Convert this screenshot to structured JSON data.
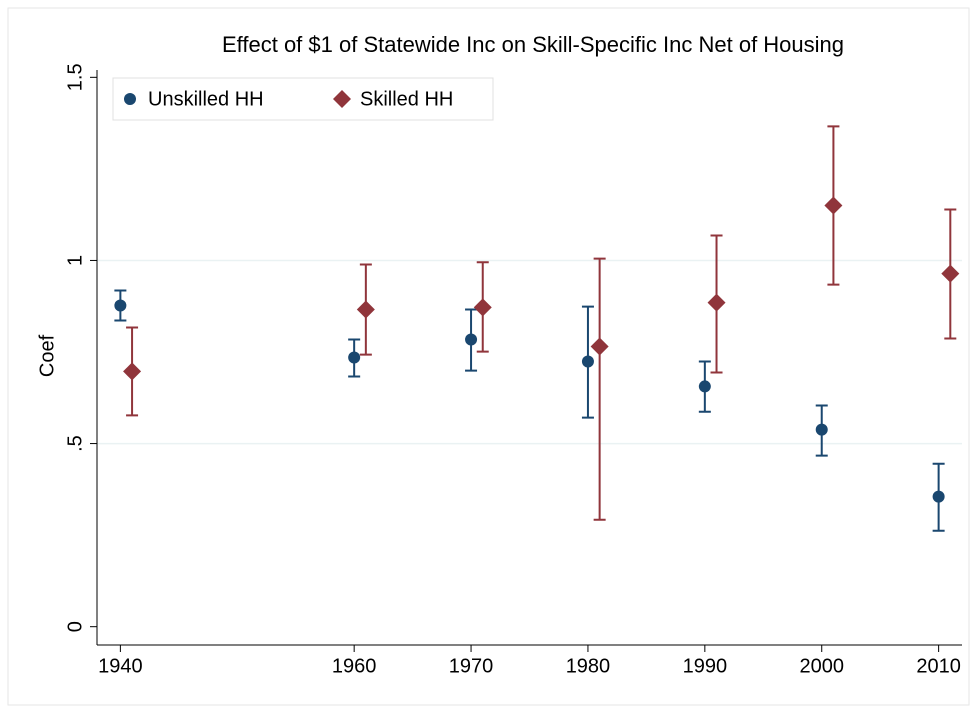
{
  "chart_data": {
    "type": "scatter-errorbar",
    "title": "Effect of $1 of Statewide Inc on Skill-Specific Inc Net of Housing",
    "y_label": "Coef",
    "xlim": [
      1938,
      2012
    ],
    "xticks": [
      1940,
      1960,
      1970,
      1980,
      1990,
      2000,
      2010
    ],
    "ylim": [
      -0.05,
      1.52
    ],
    "yticks": [
      0,
      {
        "value": 0.5,
        "label": ".5"
      },
      1,
      1.5
    ],
    "grid": true,
    "legend": "top-left",
    "series": [
      {
        "name": "Unskilled HH",
        "color": "#1a476f",
        "marker": "circle",
        "x": [
          1940,
          1960,
          1970,
          1980,
          1990,
          2000,
          2010
        ],
        "values": [
          0.877,
          0.735,
          0.784,
          0.724,
          0.656,
          0.538,
          0.355
        ],
        "lower": [
          0.836,
          0.683,
          0.699,
          0.571,
          0.587,
          0.467,
          0.262
        ],
        "upper": [
          0.918,
          0.784,
          0.866,
          0.874,
          0.724,
          0.604,
          0.445
        ]
      },
      {
        "name": "Skilled HH",
        "color": "#90353b",
        "marker": "diamond",
        "x": [
          1941,
          1961,
          1971,
          1981,
          1991,
          2001,
          2011
        ],
        "values": [
          0.697,
          0.866,
          0.872,
          0.765,
          0.885,
          1.15,
          0.964
        ],
        "lower": [
          0.577,
          0.743,
          0.751,
          0.292,
          0.694,
          0.934,
          0.787
        ],
        "upper": [
          0.817,
          0.989,
          0.995,
          1.005,
          1.068,
          1.366,
          1.139
        ]
      }
    ]
  }
}
